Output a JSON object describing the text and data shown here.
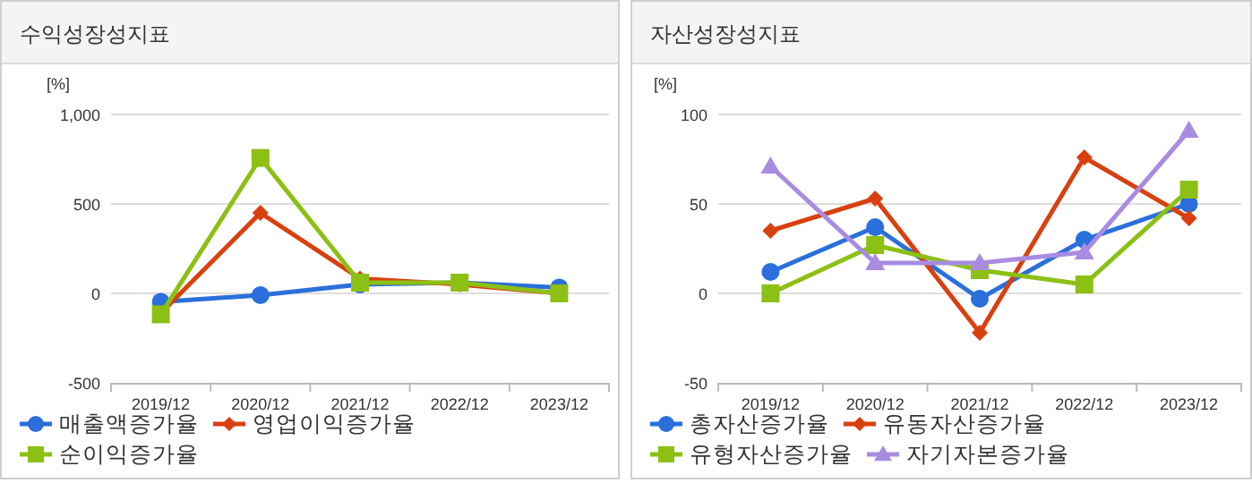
{
  "chart_data": [
    {
      "type": "line",
      "title": "수익성장성지표",
      "ylabel": "[%]",
      "categories": [
        "2019/12",
        "2020/12",
        "2021/12",
        "2022/12",
        "2023/12"
      ],
      "ylim": [
        -500,
        1000
      ],
      "yticks": [
        -500,
        0,
        500,
        {
          "value": 1000,
          "label": "1,000"
        }
      ],
      "grid": "y",
      "legend": "bottom",
      "series": [
        {
          "name": "매출액증가율",
          "color": "#2a6fdb",
          "marker": "circle",
          "values": [
            -47,
            -10,
            50,
            60,
            33
          ]
        },
        {
          "name": "영업이익증가율",
          "color": "#d9400f",
          "marker": "diamond",
          "values": [
            -110,
            450,
            83,
            50,
            0
          ]
        },
        {
          "name": "순이익증가율",
          "color": "#8cc014",
          "marker": "square",
          "values": [
            -117,
            757,
            60,
            60,
            0
          ]
        }
      ]
    },
    {
      "type": "line",
      "title": "자산성장성지표",
      "ylabel": "[%]",
      "categories": [
        "2019/12",
        "2020/12",
        "2021/12",
        "2022/12",
        "2023/12"
      ],
      "ylim": [
        -50,
        100
      ],
      "yticks": [
        -50,
        0,
        50,
        100
      ],
      "grid": "y",
      "legend": "bottom",
      "series": [
        {
          "name": "총자산증가율",
          "color": "#2a6fdb",
          "marker": "circle",
          "values": [
            12,
            37,
            -3,
            30,
            50
          ]
        },
        {
          "name": "유동자산증가율",
          "color": "#d9400f",
          "marker": "diamond",
          "values": [
            35,
            53,
            -22,
            76,
            42
          ]
        },
        {
          "name": "유형자산증가율",
          "color": "#8cc014",
          "marker": "square",
          "values": [
            0,
            27,
            13,
            5,
            58
          ]
        },
        {
          "name": "자기자본증가율",
          "color": "#a98be0",
          "marker": "triangle",
          "values": [
            71,
            17,
            17,
            23,
            91
          ]
        }
      ]
    }
  ]
}
